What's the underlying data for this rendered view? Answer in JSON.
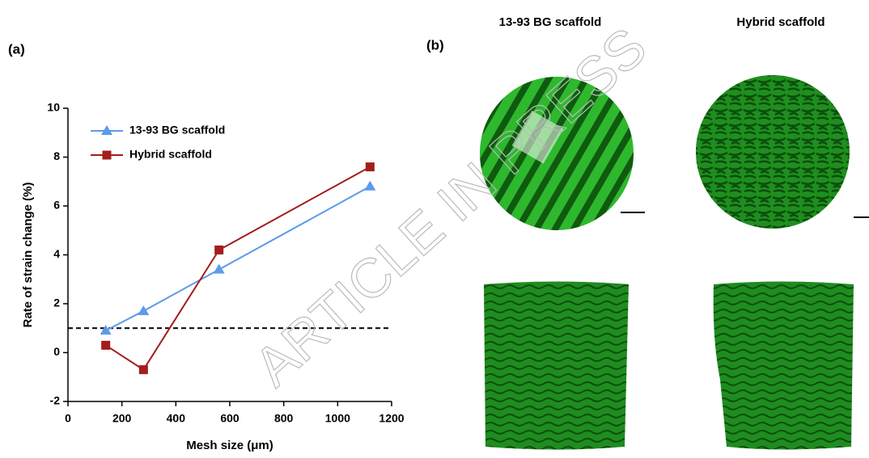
{
  "chart_data": {
    "type": "line",
    "x_label": "Mesh size (μm)",
    "y_label": "Rate of strain change (%)",
    "x": [
      140,
      280,
      560,
      1120
    ],
    "series": [
      {
        "name": "13-93 BG scaffold",
        "color": "#5b9bea",
        "marker": "triangle",
        "values": [
          0.9,
          1.7,
          3.4,
          6.8
        ]
      },
      {
        "name": "Hybrid scaffold",
        "color": "#a51c1c",
        "marker": "square",
        "values": [
          0.3,
          -0.7,
          4.2,
          7.6
        ]
      }
    ],
    "hline": 1,
    "xlim": [
      0,
      1200
    ],
    "xticks": [
      0,
      200,
      400,
      600,
      800,
      1000,
      1200
    ],
    "ylim": [
      -2,
      10
    ],
    "yticks": [
      -2,
      0,
      2,
      4,
      6,
      8,
      10
    ],
    "legend": "upper left",
    "grid": false
  },
  "panel_labels": [
    "(a)",
    "(b)"
  ],
  "panel_b": {
    "column_titles": [
      "13-93 BG scaffold",
      "Hybrid scaffold"
    ]
  },
  "watermark": "ARTICLE IN PRESS"
}
